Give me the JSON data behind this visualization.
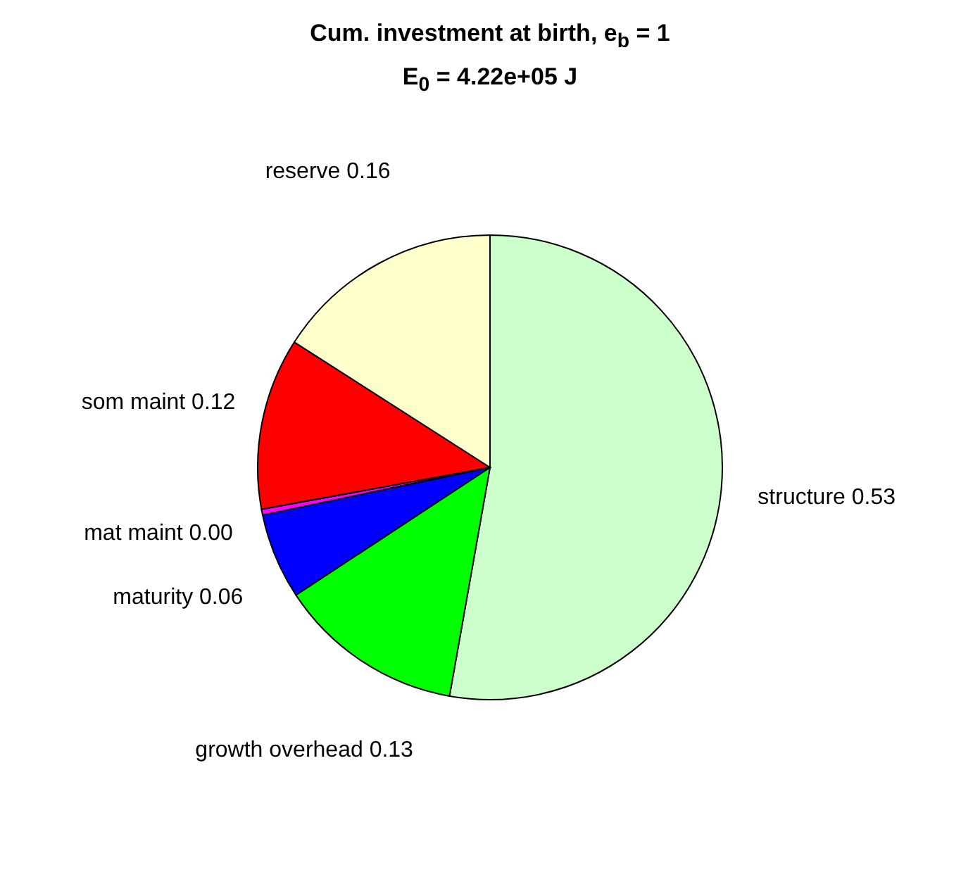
{
  "chart_data": {
    "type": "pie",
    "title": "Cum. investment at birth, e$_{b}$ = 1",
    "subtitle": "E$_{0}$ = 4.22e+05 J",
    "categories": [
      "structure",
      "growth overhead",
      "maturity",
      "mat maint",
      "som maint",
      "reserve"
    ],
    "values": [
      0.53,
      0.13,
      0.06,
      0.004,
      0.12,
      0.16
    ],
    "value_labels": [
      "0.53",
      "0.13",
      "0.06",
      "0.00",
      "0.12",
      "0.16"
    ],
    "colors": [
      "#ccffcc",
      "#00ff00",
      "#0000ff",
      "#ff00ff",
      "#ff0000",
      "#ffffcc"
    ]
  }
}
